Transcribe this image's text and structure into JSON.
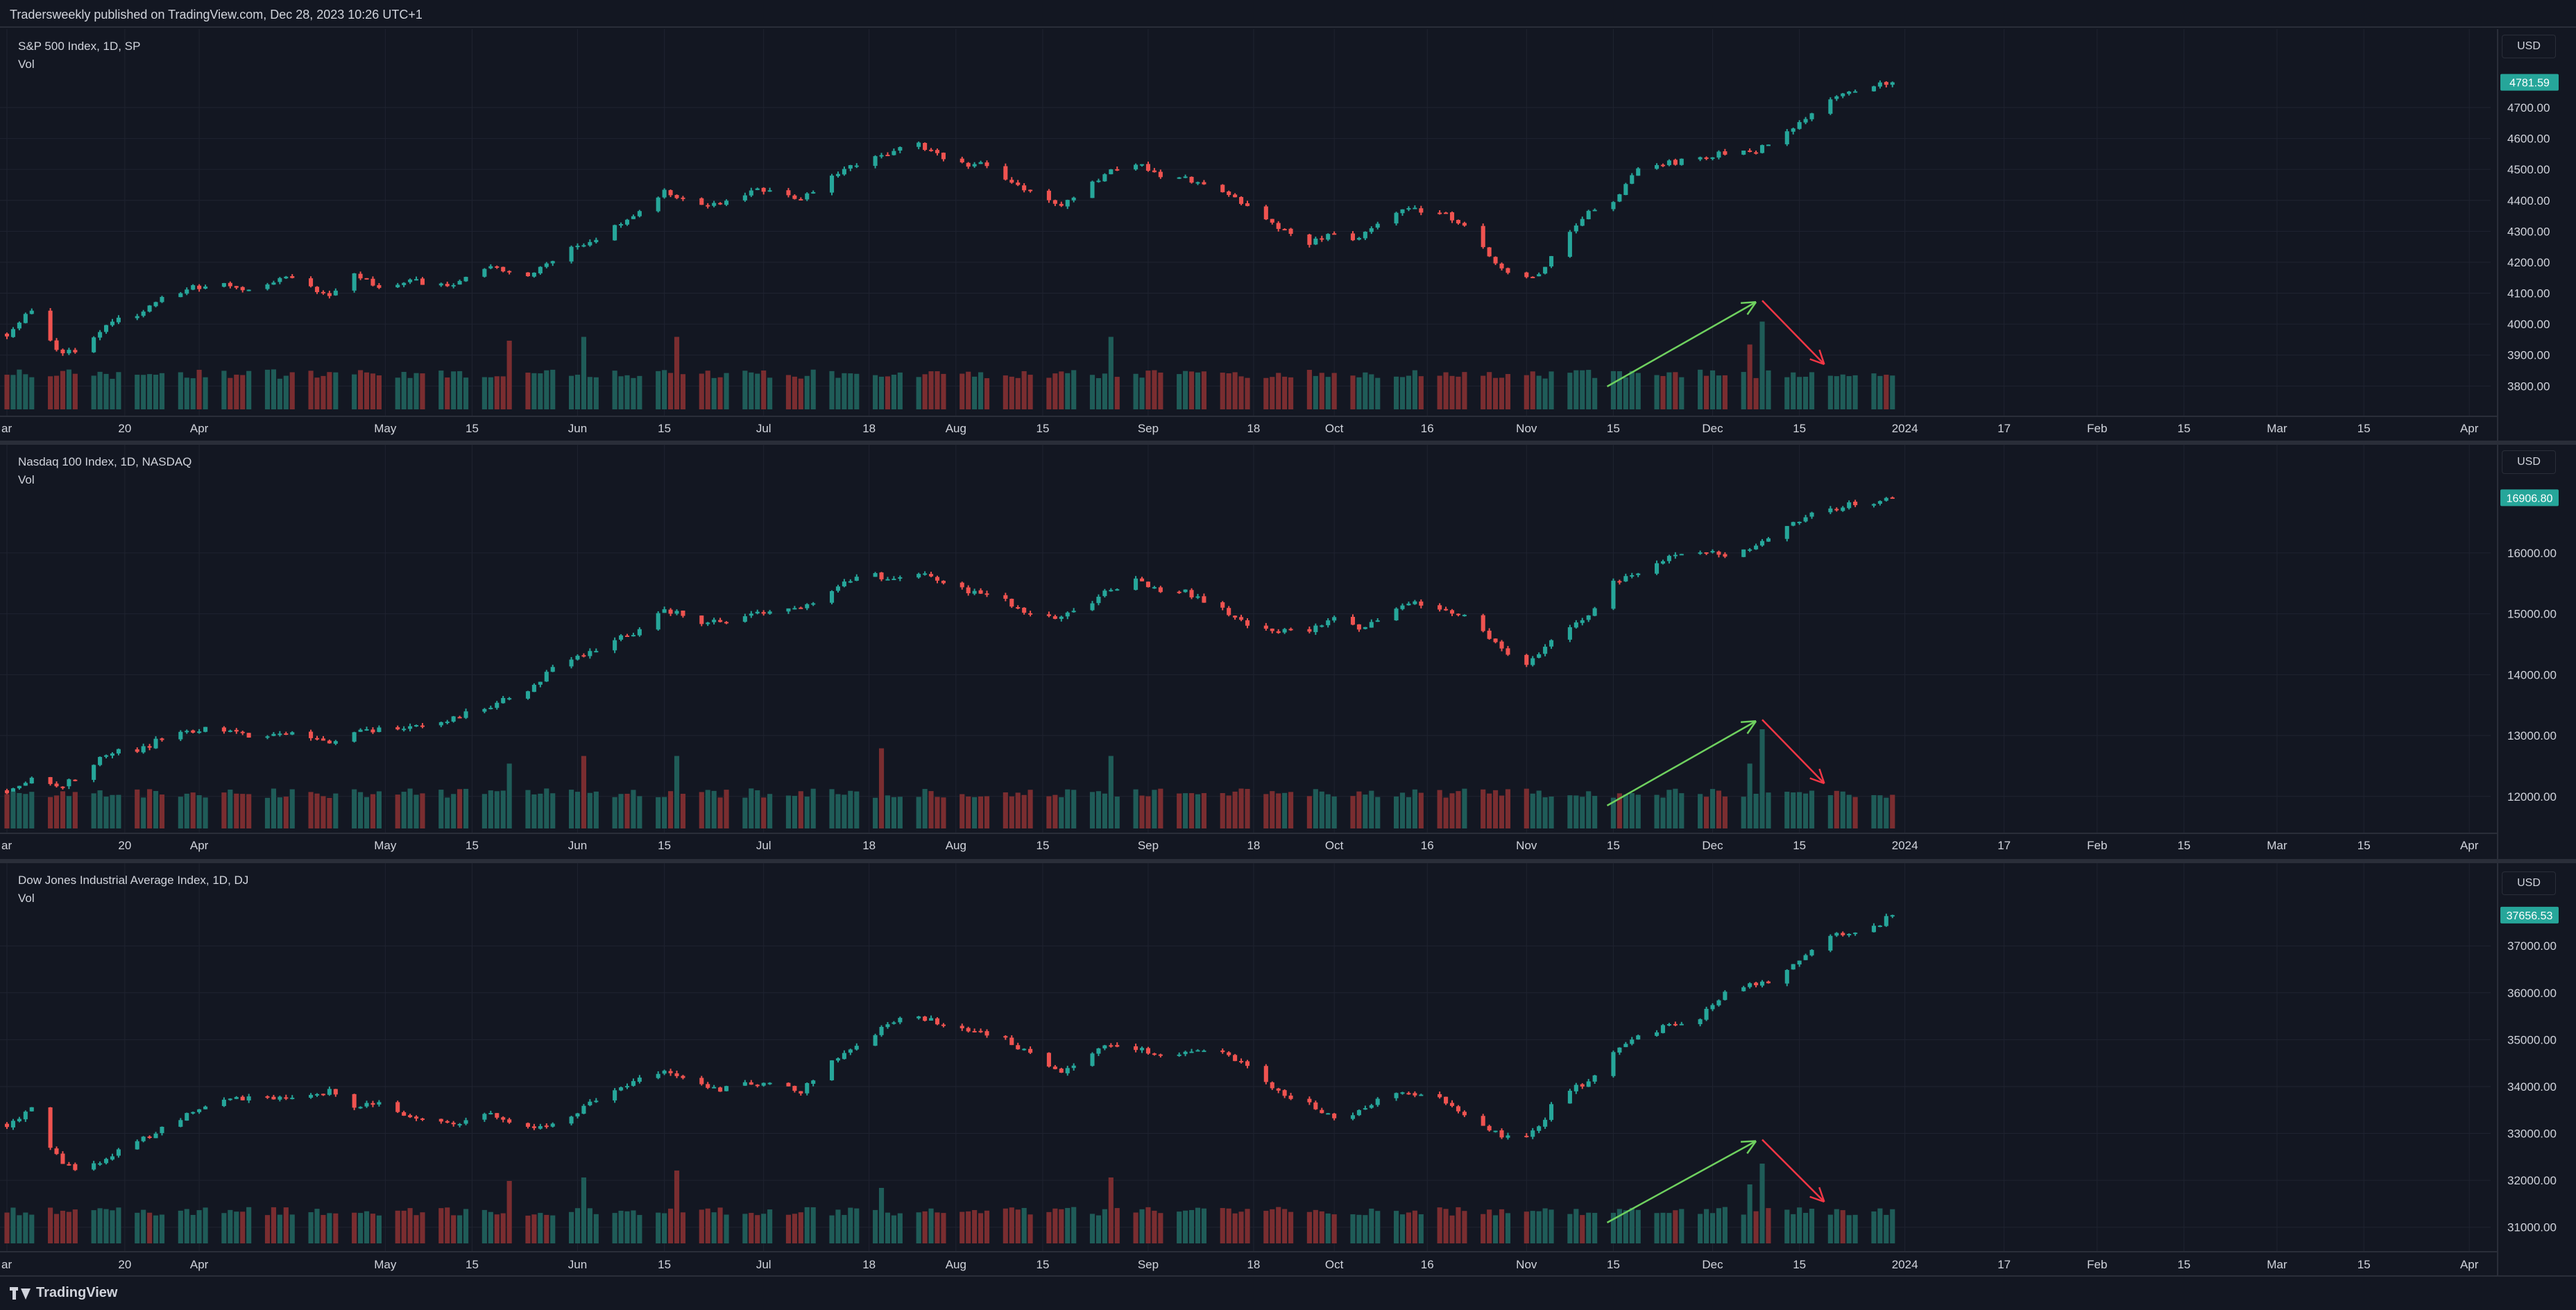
{
  "header": {
    "text": "Tradersweekly published on TradingView.com, Dec 28, 2023 10:26 UTC+1"
  },
  "footer": {
    "logo_text": "TradingView"
  },
  "colors": {
    "up": "#26a69a",
    "down": "#ef5350",
    "vol_up": "#1f5c58",
    "vol_down": "#7a2d30",
    "arrow_up": "#6fd15f",
    "arrow_down": "#f23645",
    "bg": "#131722",
    "grid": "#1f2330",
    "last_price_bg": "#26a69a"
  },
  "x_axis": {
    "ticks": [
      {
        "label": "ar",
        "day": 0
      },
      {
        "label": "20",
        "day": 19
      },
      {
        "label": "Apr",
        "day": 31
      },
      {
        "label": "May",
        "day": 61
      },
      {
        "label": "15",
        "day": 75
      },
      {
        "label": "Jun",
        "day": 92
      },
      {
        "label": "15",
        "day": 106
      },
      {
        "label": "Jul",
        "day": 122
      },
      {
        "label": "18",
        "day": 139
      },
      {
        "label": "Aug",
        "day": 153
      },
      {
        "label": "15",
        "day": 167
      },
      {
        "label": "Sep",
        "day": 184
      },
      {
        "label": "18",
        "day": 201
      },
      {
        "label": "Oct",
        "day": 214
      },
      {
        "label": "16",
        "day": 229
      },
      {
        "label": "Nov",
        "day": 245
      },
      {
        "label": "15",
        "day": 259
      },
      {
        "label": "Dec",
        "day": 275
      },
      {
        "label": "15",
        "day": 289
      },
      {
        "label": "2024",
        "day": 306
      },
      {
        "label": "17",
        "day": 322
      },
      {
        "label": "Feb",
        "day": 337
      },
      {
        "label": "15",
        "day": 351
      },
      {
        "label": "Mar",
        "day": 366
      },
      {
        "label": "15",
        "day": 380
      },
      {
        "label": "Apr",
        "day": 397
      }
    ]
  },
  "chart_data": [
    {
      "type": "candlestick",
      "title": "S&P 500 Index, 1D, SP",
      "volume_label": "Vol",
      "currency": "USD",
      "last_price": "4781.59",
      "y_ticks": [
        "4700.00",
        "4600.00",
        "4500.00",
        "4400.00",
        "4300.00",
        "4200.00",
        "4100.00",
        "4000.00",
        "3900.00",
        "3800.00"
      ],
      "ylim": [
        3720,
        4830
      ],
      "anchors": [
        [
          0,
          3970
        ],
        [
          4,
          4050
        ],
        [
          8,
          3920
        ],
        [
          12,
          3900
        ],
        [
          16,
          4000
        ],
        [
          22,
          4040
        ],
        [
          27,
          4105
        ],
        [
          33,
          4130
        ],
        [
          40,
          4110
        ],
        [
          45,
          4150
        ],
        [
          52,
          4090
        ],
        [
          56,
          4170
        ],
        [
          60,
          4120
        ],
        [
          66,
          4140
        ],
        [
          72,
          4120
        ],
        [
          78,
          4190
        ],
        [
          84,
          4150
        ],
        [
          90,
          4230
        ],
        [
          96,
          4290
        ],
        [
          101,
          4350
        ],
        [
          106,
          4430
        ],
        [
          110,
          4395
        ],
        [
          115,
          4380
        ],
        [
          118,
          4420
        ],
        [
          124,
          4440
        ],
        [
          128,
          4400
        ],
        [
          133,
          4480
        ],
        [
          138,
          4530
        ],
        [
          143,
          4560
        ],
        [
          147,
          4585
        ],
        [
          152,
          4520
        ],
        [
          157,
          4515
        ],
        [
          161,
          4470
        ],
        [
          166,
          4410
        ],
        [
          170,
          4390
        ],
        [
          175,
          4460
        ],
        [
          178,
          4500
        ],
        [
          182,
          4520
        ],
        [
          186,
          4485
        ],
        [
          190,
          4470
        ],
        [
          195,
          4450
        ],
        [
          200,
          4380
        ],
        [
          204,
          4320
        ],
        [
          210,
          4260
        ],
        [
          214,
          4290
        ],
        [
          218,
          4270
        ],
        [
          222,
          4350
        ],
        [
          226,
          4380
        ],
        [
          232,
          4350
        ],
        [
          236,
          4300
        ],
        [
          240,
          4200
        ],
        [
          244,
          4150
        ],
        [
          247,
          4160
        ],
        [
          250,
          4240
        ],
        [
          255,
          4370
        ],
        [
          259,
          4400
        ],
        [
          263,
          4500
        ],
        [
          268,
          4520
        ],
        [
          273,
          4540
        ],
        [
          278,
          4560
        ],
        [
          282,
          4560
        ],
        [
          286,
          4600
        ],
        [
          290,
          4660
        ],
        [
          293,
          4720
        ],
        [
          297,
          4750
        ],
        [
          301,
          4770
        ],
        [
          304,
          4781.59
        ]
      ],
      "volume_spikes": [
        [
          81,
          1.8
        ],
        [
          93,
          1.9
        ],
        [
          108,
          1.9
        ],
        [
          178,
          1.9
        ],
        [
          281,
          1.7
        ],
        [
          283,
          2.3
        ],
        [
          285,
          1.9
        ]
      ],
      "arrow_up_days": [
        258,
        282
      ],
      "arrow_down_days": [
        283,
        293
      ]
    },
    {
      "type": "candlestick",
      "title": "Nasdaq 100 Index, 1D, NASDAQ",
      "volume_label": "Vol",
      "currency": "USD",
      "last_price": "16906.80",
      "y_ticks": [
        "16000.00",
        "15000.00",
        "14000.00",
        "13000.00",
        "12000.00"
      ],
      "ylim": [
        11450,
        17150
      ],
      "anchors": [
        [
          0,
          12100
        ],
        [
          4,
          12300
        ],
        [
          8,
          12150
        ],
        [
          12,
          12350
        ],
        [
          16,
          12700
        ],
        [
          22,
          12800
        ],
        [
          27,
          13050
        ],
        [
          33,
          13100
        ],
        [
          40,
          13000
        ],
        [
          45,
          13050
        ],
        [
          52,
          12850
        ],
        [
          56,
          13050
        ],
        [
          60,
          13100
        ],
        [
          66,
          13150
        ],
        [
          72,
          13300
        ],
        [
          78,
          13500
        ],
        [
          84,
          13750
        ],
        [
          90,
          14250
        ],
        [
          96,
          14450
        ],
        [
          101,
          14700
        ],
        [
          106,
          15100
        ],
        [
          110,
          14900
        ],
        [
          115,
          14850
        ],
        [
          118,
          14950
        ],
        [
          124,
          15100
        ],
        [
          128,
          15050
        ],
        [
          133,
          15400
        ],
        [
          138,
          15700
        ],
        [
          143,
          15550
        ],
        [
          147,
          15700
        ],
        [
          152,
          15450
        ],
        [
          157,
          15300
        ],
        [
          161,
          15200
        ],
        [
          166,
          14900
        ],
        [
          170,
          14950
        ],
        [
          175,
          15200
        ],
        [
          178,
          15400
        ],
        [
          182,
          15550
        ],
        [
          186,
          15400
        ],
        [
          190,
          15350
        ],
        [
          195,
          15150
        ],
        [
          200,
          14800
        ],
        [
          204,
          14700
        ],
        [
          210,
          14750
        ],
        [
          214,
          14900
        ],
        [
          218,
          14750
        ],
        [
          222,
          15000
        ],
        [
          226,
          15200
        ],
        [
          232,
          15100
        ],
        [
          236,
          14900
        ],
        [
          240,
          14500
        ],
        [
          244,
          14150
        ],
        [
          247,
          14300
        ],
        [
          250,
          14700
        ],
        [
          255,
          15000
        ],
        [
          259,
          15500
        ],
        [
          263,
          15700
        ],
        [
          268,
          15950
        ],
        [
          273,
          16050
        ],
        [
          278,
          15900
        ],
        [
          282,
          16150
        ],
        [
          286,
          16400
        ],
        [
          290,
          16600
        ],
        [
          293,
          16700
        ],
        [
          297,
          16800
        ],
        [
          301,
          16850
        ],
        [
          304,
          16906.8
        ]
      ],
      "volume_spikes": [
        [
          81,
          1.7
        ],
        [
          93,
          1.9
        ],
        [
          108,
          1.9
        ],
        [
          141,
          2.1
        ],
        [
          178,
          1.9
        ],
        [
          281,
          1.7
        ],
        [
          283,
          2.6
        ],
        [
          285,
          1.8
        ]
      ],
      "arrow_up_days": [
        258,
        282
      ],
      "arrow_down_days": [
        283,
        293
      ]
    },
    {
      "type": "candlestick",
      "title": "Dow Jones Industrial Average Index, 1D, DJ",
      "volume_label": "Vol",
      "currency": "USD",
      "last_price": "37656.53",
      "y_ticks": [
        "37000.00",
        "36000.00",
        "35000.00",
        "34000.00",
        "33000.00",
        "32000.00",
        "31000.00"
      ],
      "ylim": [
        30700,
        37950
      ],
      "anchors": [
        [
          0,
          33200
        ],
        [
          4,
          33500
        ],
        [
          8,
          32500
        ],
        [
          12,
          32100
        ],
        [
          16,
          32500
        ],
        [
          20,
          32700
        ],
        [
          27,
          33300
        ],
        [
          33,
          33600
        ],
        [
          40,
          33800
        ],
        [
          45,
          33700
        ],
        [
          52,
          33900
        ],
        [
          56,
          33500
        ],
        [
          60,
          33700
        ],
        [
          66,
          33300
        ],
        [
          72,
          33200
        ],
        [
          78,
          33400
        ],
        [
          84,
          33100
        ],
        [
          90,
          33300
        ],
        [
          96,
          33800
        ],
        [
          101,
          34100
        ],
        [
          106,
          34300
        ],
        [
          110,
          34100
        ],
        [
          115,
          33900
        ],
        [
          118,
          34100
        ],
        [
          124,
          34000
        ],
        [
          128,
          33900
        ],
        [
          133,
          34500
        ],
        [
          138,
          35000
        ],
        [
          143,
          35400
        ],
        [
          147,
          35500
        ],
        [
          152,
          35300
        ],
        [
          157,
          35200
        ],
        [
          161,
          35000
        ],
        [
          166,
          34600
        ],
        [
          170,
          34300
        ],
        [
          175,
          34700
        ],
        [
          178,
          34900
        ],
        [
          182,
          34800
        ],
        [
          186,
          34700
        ],
        [
          190,
          34750
        ],
        [
          195,
          34800
        ],
        [
          200,
          34400
        ],
        [
          204,
          34000
        ],
        [
          210,
          33600
        ],
        [
          214,
          33300
        ],
        [
          218,
          33500
        ],
        [
          222,
          33800
        ],
        [
          226,
          33900
        ],
        [
          232,
          33700
        ],
        [
          236,
          33300
        ],
        [
          240,
          33000
        ],
        [
          244,
          32800
        ],
        [
          247,
          33100
        ],
        [
          250,
          33800
        ],
        [
          255,
          34100
        ],
        [
          259,
          34700
        ],
        [
          263,
          35100
        ],
        [
          268,
          35300
        ],
        [
          273,
          35500
        ],
        [
          278,
          36100
        ],
        [
          282,
          36200
        ],
        [
          286,
          36300
        ],
        [
          290,
          36800
        ],
        [
          293,
          37200
        ],
        [
          297,
          37300
        ],
        [
          301,
          37400
        ],
        [
          304,
          37656.53
        ]
      ],
      "volume_spikes": [
        [
          81,
          1.8
        ],
        [
          93,
          1.9
        ],
        [
          108,
          2.1
        ],
        [
          141,
          1.6
        ],
        [
          178,
          1.9
        ],
        [
          281,
          1.7
        ],
        [
          283,
          2.3
        ],
        [
          285,
          1.7
        ]
      ],
      "arrow_up_days": [
        258,
        282
      ],
      "arrow_down_days": [
        283,
        293
      ]
    }
  ]
}
